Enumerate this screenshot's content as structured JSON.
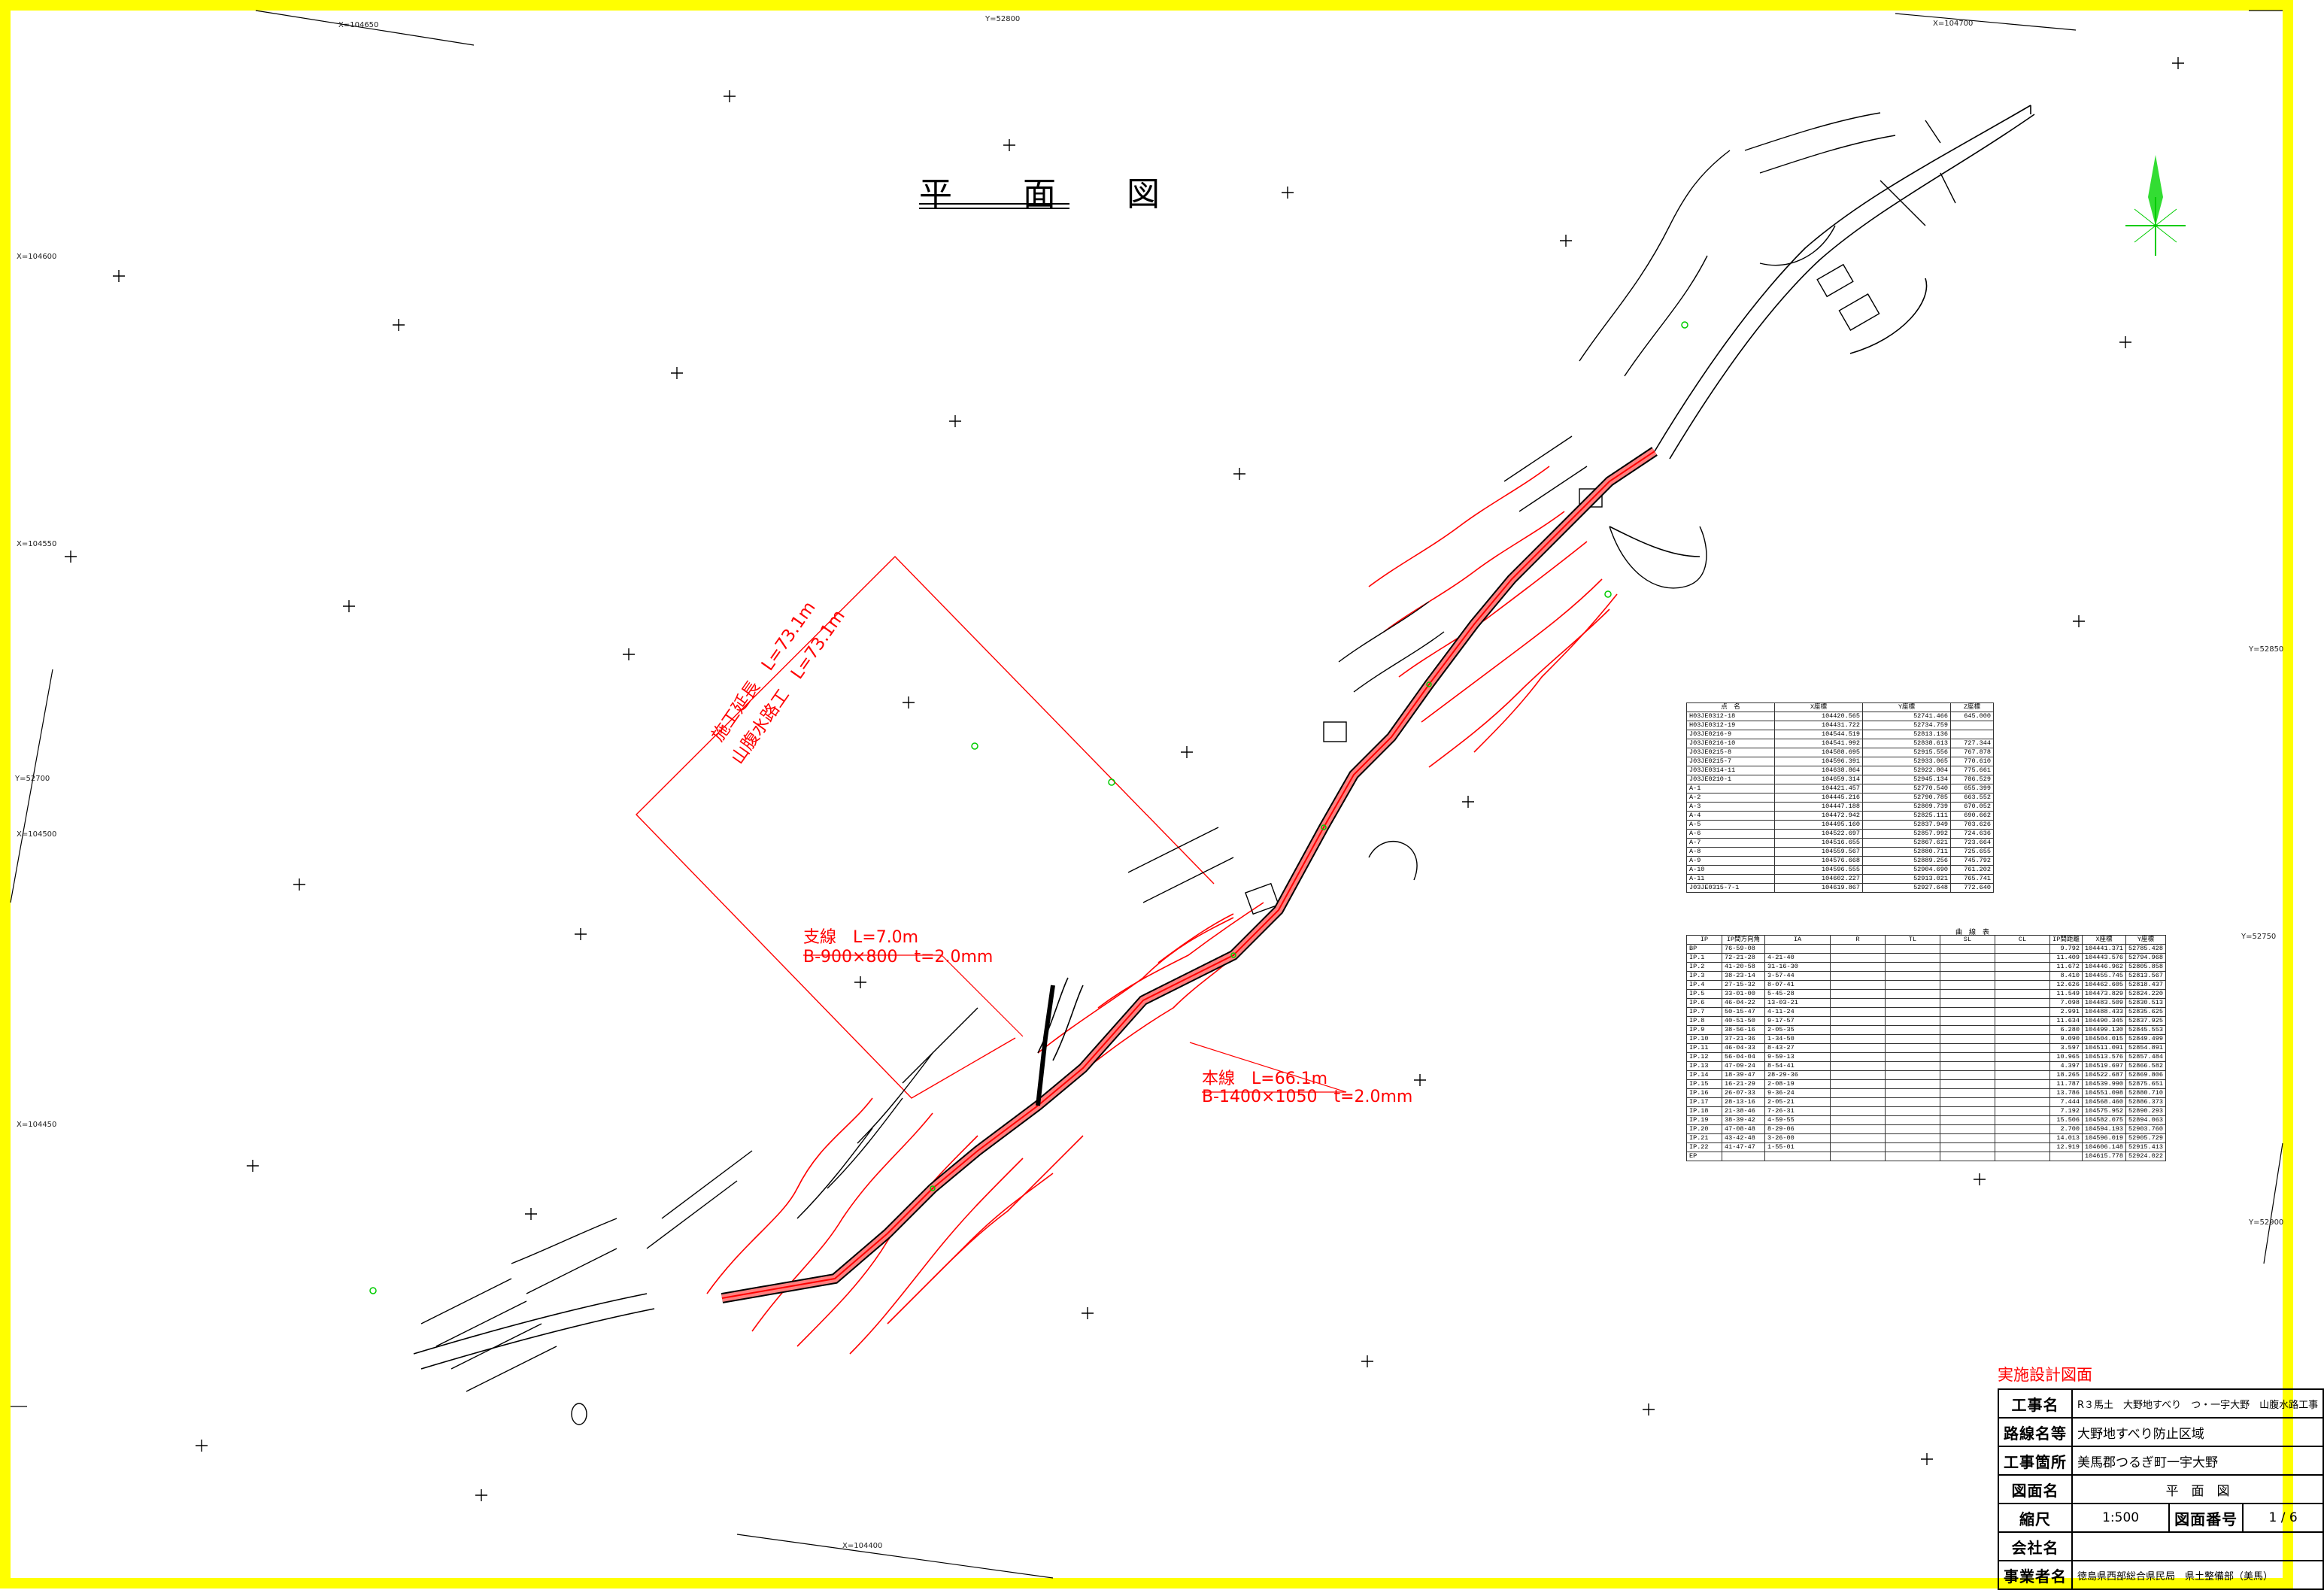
{
  "plan_title": "平 面 図",
  "labels": {
    "construction_length": "施工延長　L=73.1m",
    "channel_work": "山腹水路工　L=73.1m",
    "branch_line": "支線　L=7.0m",
    "branch_spec": "B-900×800　t=2.0mm",
    "main_line": "本線　L=66.1m",
    "main_spec": "B-1400×1050　t=2.0mm"
  },
  "grid_labels": [
    "X=104650",
    "Y=52800",
    "X=104700",
    "X=104600",
    "X=104550",
    "X=104500",
    "Y=52850",
    "X=104450",
    "Y=52700",
    "X=104400",
    "Y=52750",
    "Y=52900"
  ],
  "point_table": {
    "headers": [
      "点　名",
      "X座標",
      "Y座標",
      "Z座標"
    ],
    "rows": [
      [
        "H03JE0312-18",
        "104420.565",
        "52741.466",
        "645.000"
      ],
      [
        "H03JE0312-19",
        "104431.722",
        "52734.759",
        ""
      ],
      [
        "J03JE0216-9",
        "104544.519",
        "52813.136",
        ""
      ],
      [
        "J03JE0216-10",
        "104541.992",
        "52838.613",
        "727.344"
      ],
      [
        "J03JE0215-8",
        "104588.695",
        "52915.556",
        "767.878"
      ],
      [
        "J03JE0215-7",
        "104596.391",
        "52933.065",
        "770.610"
      ],
      [
        "J03JE0314-11",
        "104638.864",
        "52922.804",
        "775.661"
      ],
      [
        "J03JE0210-1",
        "104659.314",
        "52945.134",
        "786.529"
      ],
      [
        "A-1",
        "104421.457",
        "52770.540",
        "655.399"
      ],
      [
        "A-2",
        "104445.216",
        "52790.785",
        "663.552"
      ],
      [
        "A-3",
        "104447.188",
        "52809.739",
        "670.052"
      ],
      [
        "A-4",
        "104472.942",
        "52825.111",
        "690.662"
      ],
      [
        "A-5",
        "104495.160",
        "52837.949",
        "703.626"
      ],
      [
        "A-6",
        "104522.697",
        "52857.992",
        "724.636"
      ],
      [
        "A-7",
        "104516.655",
        "52867.621",
        "723.664"
      ],
      [
        "A-8",
        "104559.567",
        "52880.711",
        "725.655"
      ],
      [
        "A-9",
        "104576.668",
        "52889.256",
        "745.792"
      ],
      [
        "A-10",
        "104596.555",
        "52904.690",
        "761.202"
      ],
      [
        "A-11",
        "104602.227",
        "52913.021",
        "765.741"
      ],
      [
        "J03JE0315-7-1",
        "104619.867",
        "52927.648",
        "772.640"
      ]
    ]
  },
  "curve_table": {
    "caption": "曲　線　表",
    "headers": [
      "IP",
      "IP間方向角",
      "IA",
      "R",
      "TL",
      "SL",
      "CL",
      "IP間距離",
      "X座標",
      "Y座標"
    ],
    "rows": [
      [
        "BP",
        "76-59-08",
        "",
        "",
        "",
        "",
        "",
        "9.792",
        "104441.371",
        "52785.428"
      ],
      [
        "IP.1",
        "72-21-28",
        "4-21-40",
        "",
        "",
        "",
        "",
        "11.409",
        "104443.576",
        "52794.968"
      ],
      [
        "IP.2",
        "41-20-58",
        "31-16-30",
        "",
        "",
        "",
        "",
        "11.672",
        "104446.962",
        "52805.858"
      ],
      [
        "IP.3",
        "38-23-14",
        "3-57-44",
        "",
        "",
        "",
        "",
        "8.410",
        "104455.745",
        "52813.567"
      ],
      [
        "IP.4",
        "27-15-32",
        "8-07-41",
        "",
        "",
        "",
        "",
        "12.626",
        "104462.605",
        "52818.437"
      ],
      [
        "IP.5",
        "33-01-00",
        "5-45-28",
        "",
        "",
        "",
        "",
        "11.549",
        "104473.829",
        "52824.220"
      ],
      [
        "IP.6",
        "46-04-22",
        "13-03-21",
        "",
        "",
        "",
        "",
        "7.098",
        "104483.509",
        "52830.513"
      ],
      [
        "IP.7",
        "50-15-47",
        "4-11-24",
        "",
        "",
        "",
        "",
        "2.991",
        "104488.433",
        "52835.625"
      ],
      [
        "IP.8",
        "40-51-50",
        "9-17-57",
        "",
        "",
        "",
        "",
        "11.634",
        "104490.345",
        "52837.925"
      ],
      [
        "IP.9",
        "38-56-16",
        "2-05-35",
        "",
        "",
        "",
        "",
        "6.280",
        "104499.130",
        "52845.553"
      ],
      [
        "IP.10",
        "37-21-36",
        "1-34-50",
        "",
        "",
        "",
        "",
        "9.090",
        "104504.015",
        "52849.499"
      ],
      [
        "IP.11",
        "46-04-33",
        "8-43-27",
        "",
        "",
        "",
        "",
        "3.597",
        "104511.091",
        "52854.891"
      ],
      [
        "IP.12",
        "56-04-04",
        "9-59-13",
        "",
        "",
        "",
        "",
        "10.965",
        "104513.576",
        "52857.484"
      ],
      [
        "IP.13",
        "47-09-24",
        "8-54-41",
        "",
        "",
        "",
        "",
        "4.397",
        "104519.697",
        "52866.582"
      ],
      [
        "IP.14",
        "18-39-47",
        "28-29-36",
        "",
        "",
        "",
        "",
        "18.265",
        "104522.687",
        "52869.806"
      ],
      [
        "IP.15",
        "16-21-29",
        "2-08-19",
        "",
        "",
        "",
        "",
        "11.787",
        "104539.990",
        "52875.651"
      ],
      [
        "IP.16",
        "26-07-33",
        "9-36-24",
        "",
        "",
        "",
        "",
        "13.786",
        "104551.098",
        "52880.710"
      ],
      [
        "IP.17",
        "28-13-16",
        "2-05-21",
        "",
        "",
        "",
        "",
        "7.444",
        "104568.460",
        "52886.373"
      ],
      [
        "IP.18",
        "21-38-46",
        "7-26-31",
        "",
        "",
        "",
        "",
        "7.192",
        "104575.952",
        "52890.293"
      ],
      [
        "IP.19",
        "38-39-42",
        "4-59-55",
        "",
        "",
        "",
        "",
        "15.506",
        "104582.075",
        "52894.063"
      ],
      [
        "IP.20",
        "47-08-48",
        "8-29-06",
        "",
        "",
        "",
        "",
        "2.700",
        "104594.193",
        "52903.760"
      ],
      [
        "IP.21",
        "43-42-48",
        "3-26-00",
        "",
        "",
        "",
        "",
        "14.013",
        "104596.019",
        "52905.729"
      ],
      [
        "IP.22",
        "41-47-47",
        "1-55-01",
        "",
        "",
        "",
        "",
        "12.919",
        "104606.148",
        "52915.413"
      ],
      [
        "EP",
        "",
        "",
        "",
        "",
        "",
        "",
        "",
        "104615.778",
        "52924.022"
      ]
    ]
  },
  "title_block": {
    "header": "実施設計図面",
    "rows": [
      {
        "key": "工事名",
        "value": "R３馬土　大野地すべり　つ・一宇大野　山腹水路工事"
      },
      {
        "key": "路線名等",
        "value": "大野地すべり防止区域"
      },
      {
        "key": "工事箇所",
        "value": "美馬郡つるぎ町一宇大野"
      },
      {
        "key": "図面名",
        "value": "平　面　図"
      }
    ],
    "scale_key": "縮尺",
    "scale_value": "1:500",
    "drawing_no_key": "図面番号",
    "drawing_no_value": "1 / 6",
    "company_key": "会社名",
    "company_value": "",
    "client_key": "事業者名",
    "client_value": "徳島県西部総合県民局　県土整備部（美馬）"
  },
  "colors": {
    "border": "#ffff00",
    "contour": "#ff0000",
    "survey_point": "#00cc00",
    "ink": "#000000"
  }
}
